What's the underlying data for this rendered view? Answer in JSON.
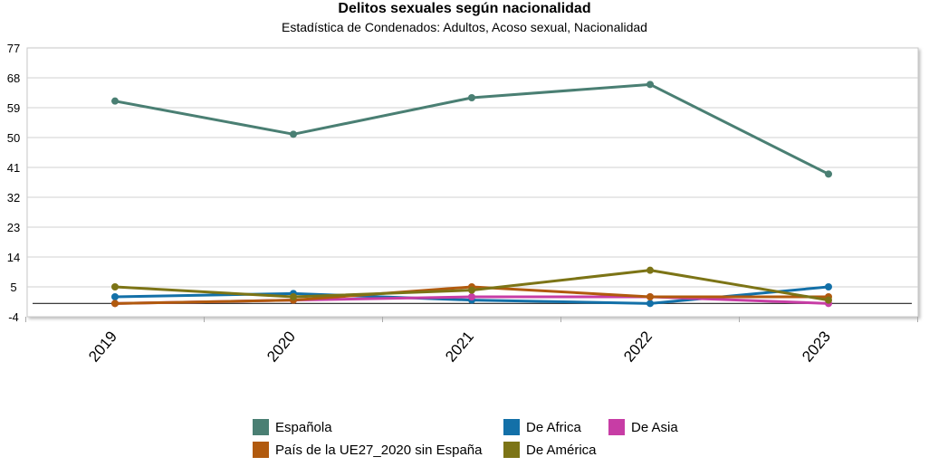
{
  "chart_data": {
    "type": "line",
    "title": "Delitos sexuales según nacionalidad",
    "subtitle": "Estadística de Condenados: Adultos, Acoso sexual, Nacionalidad",
    "xlabel": "",
    "ylabel": "",
    "categories": [
      "2019",
      "2020",
      "2021",
      "2022",
      "2023"
    ],
    "y_ticks": [
      -4,
      5,
      14,
      23,
      32,
      41,
      50,
      59,
      68,
      77
    ],
    "ylim": [
      -4,
      77
    ],
    "series": [
      {
        "name": "Española",
        "color": "#4a7f73",
        "values": [
          61,
          51,
          62,
          66,
          39
        ]
      },
      {
        "name": "De Africa",
        "color": "#1370a8",
        "values": [
          2,
          3,
          1,
          0,
          5
        ]
      },
      {
        "name": "De Asia",
        "color": "#c73da5",
        "values": [
          0,
          1,
          2,
          2,
          0
        ]
      },
      {
        "name": "País de la UE27_2020 sin España",
        "color": "#b15a0e",
        "values": [
          0,
          1,
          5,
          2,
          2
        ]
      },
      {
        "name": "De América",
        "color": "#7c7416",
        "values": [
          5,
          2,
          4,
          10,
          1
        ]
      }
    ],
    "legend_order": [
      0,
      1,
      2,
      3,
      4
    ],
    "grid": true,
    "legend_position": "bottom"
  }
}
